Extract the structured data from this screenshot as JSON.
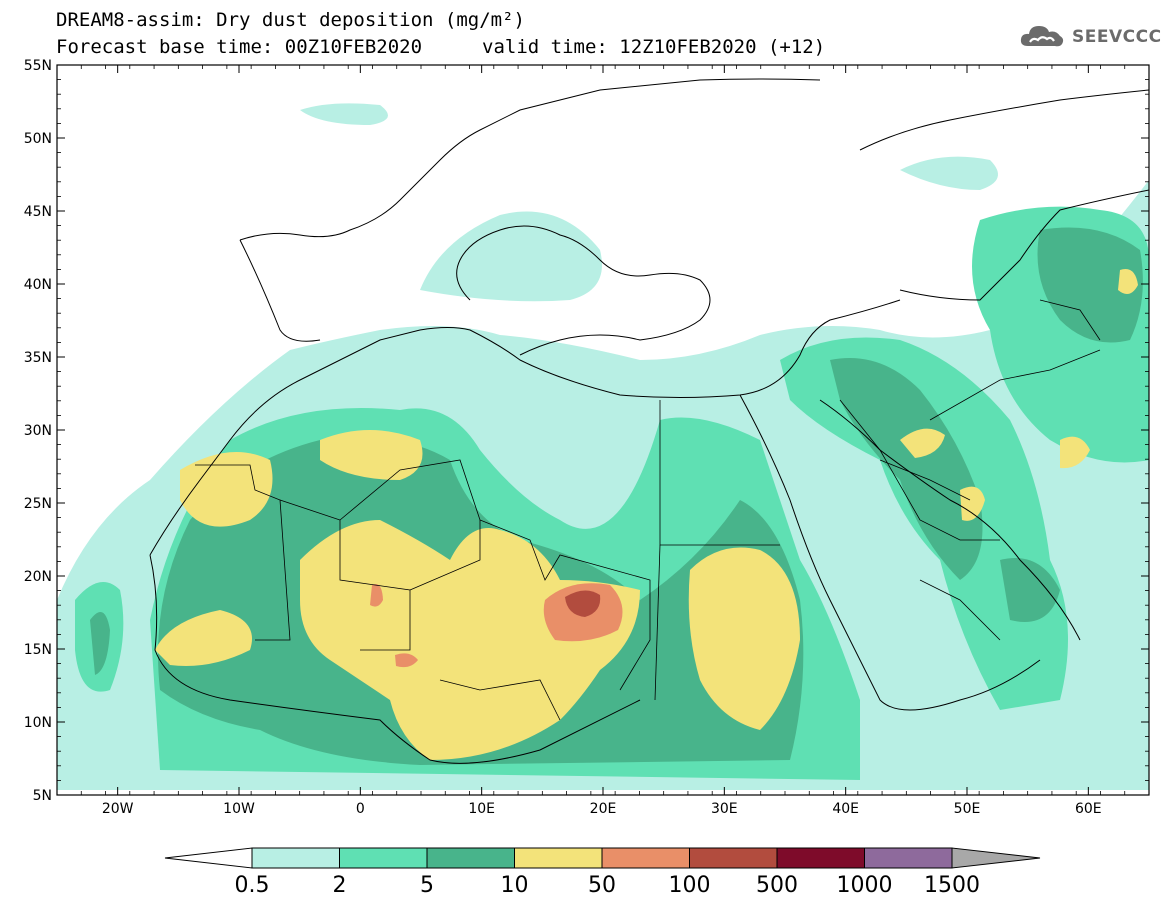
{
  "header": {
    "title": "DREAM8-assim: Dry dust deposition (mg/m²)",
    "base_time": "Forecast base time: 00Z10FEB2020",
    "valid_time": "valid time: 12Z10FEB2020 (+12)"
  },
  "logo": {
    "text": "SEEVCCC",
    "icon": "cloud-icon"
  },
  "map": {
    "lat_labels": [
      "5N",
      "10N",
      "15N",
      "20N",
      "25N",
      "30N",
      "35N",
      "40N",
      "45N",
      "50N",
      "55N"
    ],
    "lon_labels": [
      "20W",
      "10W",
      "0",
      "10E",
      "20E",
      "30E",
      "40E",
      "50E",
      "60E"
    ]
  },
  "colorbar": {
    "labels": [
      "0.5",
      "2",
      "5",
      "10",
      "50",
      "100",
      "500",
      "1000",
      "1500"
    ],
    "colors": [
      "#b8efe4",
      "#5fe0b3",
      "#48b48b",
      "#f3e37a",
      "#e98f68",
      "#b24c3e",
      "#7e0b2a",
      "#8e6a9c"
    ],
    "below_color": "#ffffff",
    "above_color": "#a8a8a8"
  },
  "chart_data": {
    "type": "heatmap",
    "title": "DREAM8-assim: Dry dust deposition (mg/m²)",
    "xlabel": "",
    "ylabel": "",
    "xlim": [
      -25,
      65
    ],
    "ylim": [
      5,
      55
    ],
    "contour_levels": [
      0.5,
      2,
      5,
      10,
      50,
      100,
      500,
      1000,
      1500
    ],
    "units": "mg/m²"
  }
}
